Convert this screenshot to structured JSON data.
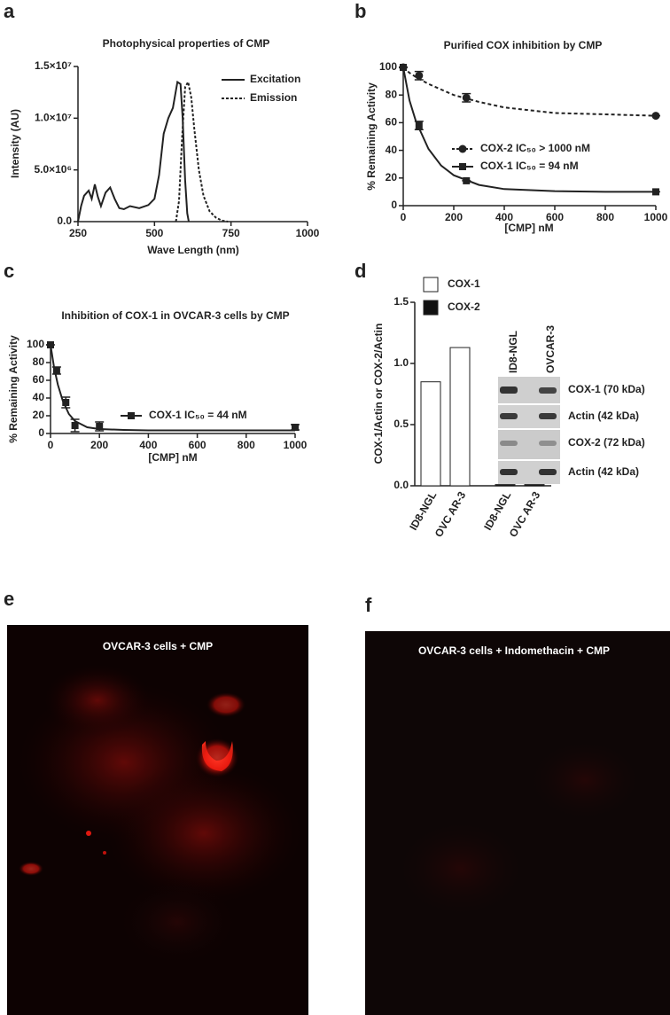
{
  "panel_labels": [
    "a",
    "b",
    "c",
    "d",
    "e",
    "f"
  ],
  "chart_data": [
    {
      "type": "line",
      "title": "Photophysical properties of CMP",
      "xlabel": "Wave Length (nm)",
      "ylabel": "Intensity (AU)",
      "xlim": [
        250,
        1000
      ],
      "xticks": [
        250,
        500,
        750,
        1000
      ],
      "ylim": [
        0,
        15000000
      ],
      "yticks": [
        {
          "value": 0,
          "label": "0.0"
        },
        {
          "value": 5000000,
          "label": "5.0×10⁶"
        },
        {
          "value": 10000000,
          "label": "1.0×10⁷"
        },
        {
          "value": 15000000,
          "label": "1.5×10⁷"
        }
      ],
      "legend": "upper right",
      "series": [
        {
          "name": "Excitation",
          "color": "#222222",
          "dash": false,
          "x": [
            250,
            260,
            270,
            285,
            295,
            305,
            315,
            325,
            340,
            355,
            370,
            385,
            400,
            420,
            450,
            480,
            500,
            515,
            530,
            545,
            560,
            575,
            585,
            592,
            600,
            607,
            612
          ],
          "values": [
            0,
            1500000,
            2500000,
            3000000,
            2200000,
            3600000,
            2400000,
            1500000,
            2800000,
            3300000,
            2200000,
            1300000,
            1200000,
            1500000,
            1300000,
            1600000,
            2200000,
            4500000,
            8500000,
            10000000,
            11000000,
            13500000,
            13300000,
            10000000,
            4000000,
            800000,
            0
          ]
        },
        {
          "name": "Emission",
          "color": "#222222",
          "dash": true,
          "x": [
            570,
            580,
            590,
            600,
            610,
            620,
            630,
            645,
            660,
            680,
            700,
            720,
            740
          ],
          "values": [
            0,
            2000000,
            8000000,
            13000000,
            13500000,
            12000000,
            9000000,
            5000000,
            2500000,
            1000000,
            400000,
            100000,
            0
          ]
        }
      ]
    },
    {
      "type": "scatter",
      "title": "Purified COX inhibition by CMP",
      "xlabel": "[CMP] nM",
      "ylabel": "% Remaining Activity",
      "xlim": [
        0,
        1000
      ],
      "xticks": [
        0,
        200,
        400,
        600,
        800,
        1000
      ],
      "ylim": [
        0,
        100
      ],
      "yticks": [
        0,
        20,
        40,
        60,
        80,
        100
      ],
      "legend": "center right",
      "series": [
        {
          "name": "COX-2 IC₅₀ > 1000 nM",
          "color": "#222222",
          "marker": "circle",
          "dash": true,
          "x": [
            0,
            62.5,
            250,
            1000
          ],
          "values": [
            100,
            94,
            78,
            65
          ],
          "errors": [
            0,
            3,
            3,
            0
          ],
          "fit_x": [
            0,
            25,
            50,
            100,
            150,
            200,
            300,
            400,
            600,
            800,
            1000
          ],
          "fit_values": [
            100,
            96,
            93,
            88,
            84,
            80,
            75,
            71,
            67,
            66,
            65
          ]
        },
        {
          "name": "COX-1 IC₅₀ = 94 nM",
          "color": "#222222",
          "marker": "square",
          "dash": false,
          "x": [
            0,
            62.5,
            250,
            1000
          ],
          "values": [
            100,
            58,
            18,
            10
          ],
          "errors": [
            0,
            3,
            0,
            0
          ],
          "fit_x": [
            0,
            25,
            50,
            100,
            150,
            200,
            300,
            400,
            600,
            800,
            1000
          ],
          "fit_values": [
            100,
            76,
            61,
            41,
            29,
            22,
            15,
            12,
            10.5,
            10,
            10
          ]
        }
      ]
    },
    {
      "type": "scatter",
      "title": "Inhibition of COX-1 in OVCAR-3 cells by CMP",
      "xlabel": "[CMP] nM",
      "ylabel": "% Remaining Activity",
      "xlim": [
        0,
        1000
      ],
      "xticks": [
        0,
        200,
        400,
        600,
        800,
        1000
      ],
      "ylim": [
        0,
        100
      ],
      "yticks": [
        0,
        20,
        40,
        60,
        80,
        100
      ],
      "legend": "center",
      "series": [
        {
          "name": "COX-1 IC₅₀ = 44 nM",
          "color": "#222222",
          "marker": "square",
          "dash": false,
          "x": [
            0,
            25,
            62.5,
            100,
            200,
            1000
          ],
          "values": [
            100,
            71,
            35,
            9,
            8,
            7
          ],
          "errors": [
            0,
            4,
            6,
            7,
            5,
            3
          ],
          "fit_x": [
            0,
            15,
            30,
            50,
            75,
            100,
            150,
            200,
            300,
            400,
            1000
          ],
          "fit_values": [
            100,
            74,
            55,
            37,
            22,
            14,
            7,
            5,
            4,
            3.5,
            3.5
          ]
        }
      ]
    },
    {
      "type": "bar",
      "ylabel": "COX-1/Actin or COX-2/Actin",
      "categories": [
        "ID8-NGL",
        "OVC AR-3",
        "ID8-NGL",
        "OVC AR-3"
      ],
      "ylim": [
        0,
        1.5
      ],
      "yticks": [
        {
          "value": 0,
          "label": "0.0"
        },
        {
          "value": 0.5,
          "label": "0.5"
        },
        {
          "value": 1,
          "label": "1.0"
        },
        {
          "value": 1.5,
          "label": "1.5"
        }
      ],
      "legend": "upper left",
      "series": [
        {
          "name": "COX-1",
          "color": "#ffffff",
          "values": [
            0.85,
            1.13,
            null,
            null
          ]
        },
        {
          "name": "COX-2",
          "color": "#111111",
          "values": [
            null,
            null,
            0.01,
            0.01
          ]
        }
      ]
    }
  ],
  "blot": {
    "columns": [
      "ID8-NGL",
      "OVCAR-3"
    ],
    "rows": [
      "COX-1 (70 kDa)",
      "Actin (42 kDa)",
      "COX-2 (72 kDa)",
      "Actin (42 kDa)"
    ]
  },
  "images": [
    {
      "title": "OVCAR-3 cells + CMP"
    },
    {
      "title": "OVCAR-3 cells + Indomethacin + CMP"
    }
  ]
}
